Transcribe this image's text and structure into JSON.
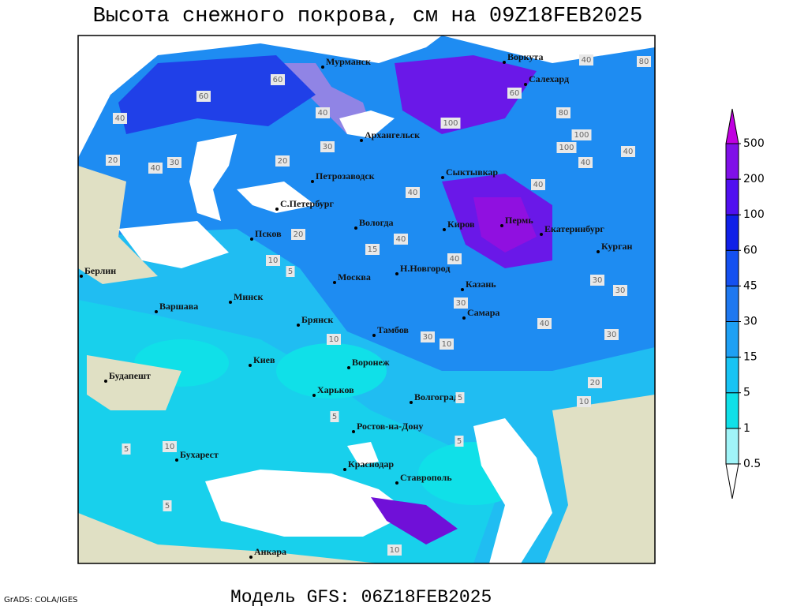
{
  "title": "Высота снежного покрова, см на 09Z18FEB2025",
  "footer": "Модель GFS: 06Z18FEB2025",
  "credit": "GrADS: COLA/IGES",
  "colorbar": {
    "levels": [
      0.5,
      1,
      5,
      15,
      30,
      45,
      60,
      100,
      200,
      500
    ],
    "colors": [
      "#ffffff",
      "#a0f4f8",
      "#10e0e8",
      "#18c4f4",
      "#1ea0f4",
      "#1e78f0",
      "#1450f0",
      "#1020e8",
      "#5010f0",
      "#8010e8",
      "#c000e0"
    ]
  },
  "cities": [
    "Мурманск",
    "Воркута",
    "Салехард",
    "Архангельск",
    "Сыктывкар",
    "Петрозаводск",
    "С.Петербург",
    "Вологда",
    "Киров",
    "Пермь",
    "Екатеринбург",
    "Курган",
    "Псков",
    "Н.Новгород",
    "Казань",
    "Москва",
    "Минск",
    "Берлин",
    "Варшава",
    "Брянск",
    "Тамбов",
    "Самара",
    "Киев",
    "Воронеж",
    "Харьков",
    "Будапешт",
    "Волгоград",
    "Ростов-на-Дону",
    "Бухарест",
    "Краснодар",
    "Ставрополь",
    "Анкара"
  ],
  "contour_labels": [
    "40",
    "80",
    "60",
    "60",
    "40",
    "40",
    "30",
    "20",
    "40",
    "30",
    "20",
    "100",
    "60",
    "80",
    "100",
    "100",
    "40",
    "40",
    "40",
    "40",
    "20",
    "10",
    "5",
    "40",
    "15",
    "40",
    "30",
    "30",
    "30",
    "40",
    "30",
    "20",
    "10",
    "10",
    "30",
    "5",
    "10",
    "5",
    "5",
    "10",
    "5",
    "5",
    "10"
  ]
}
